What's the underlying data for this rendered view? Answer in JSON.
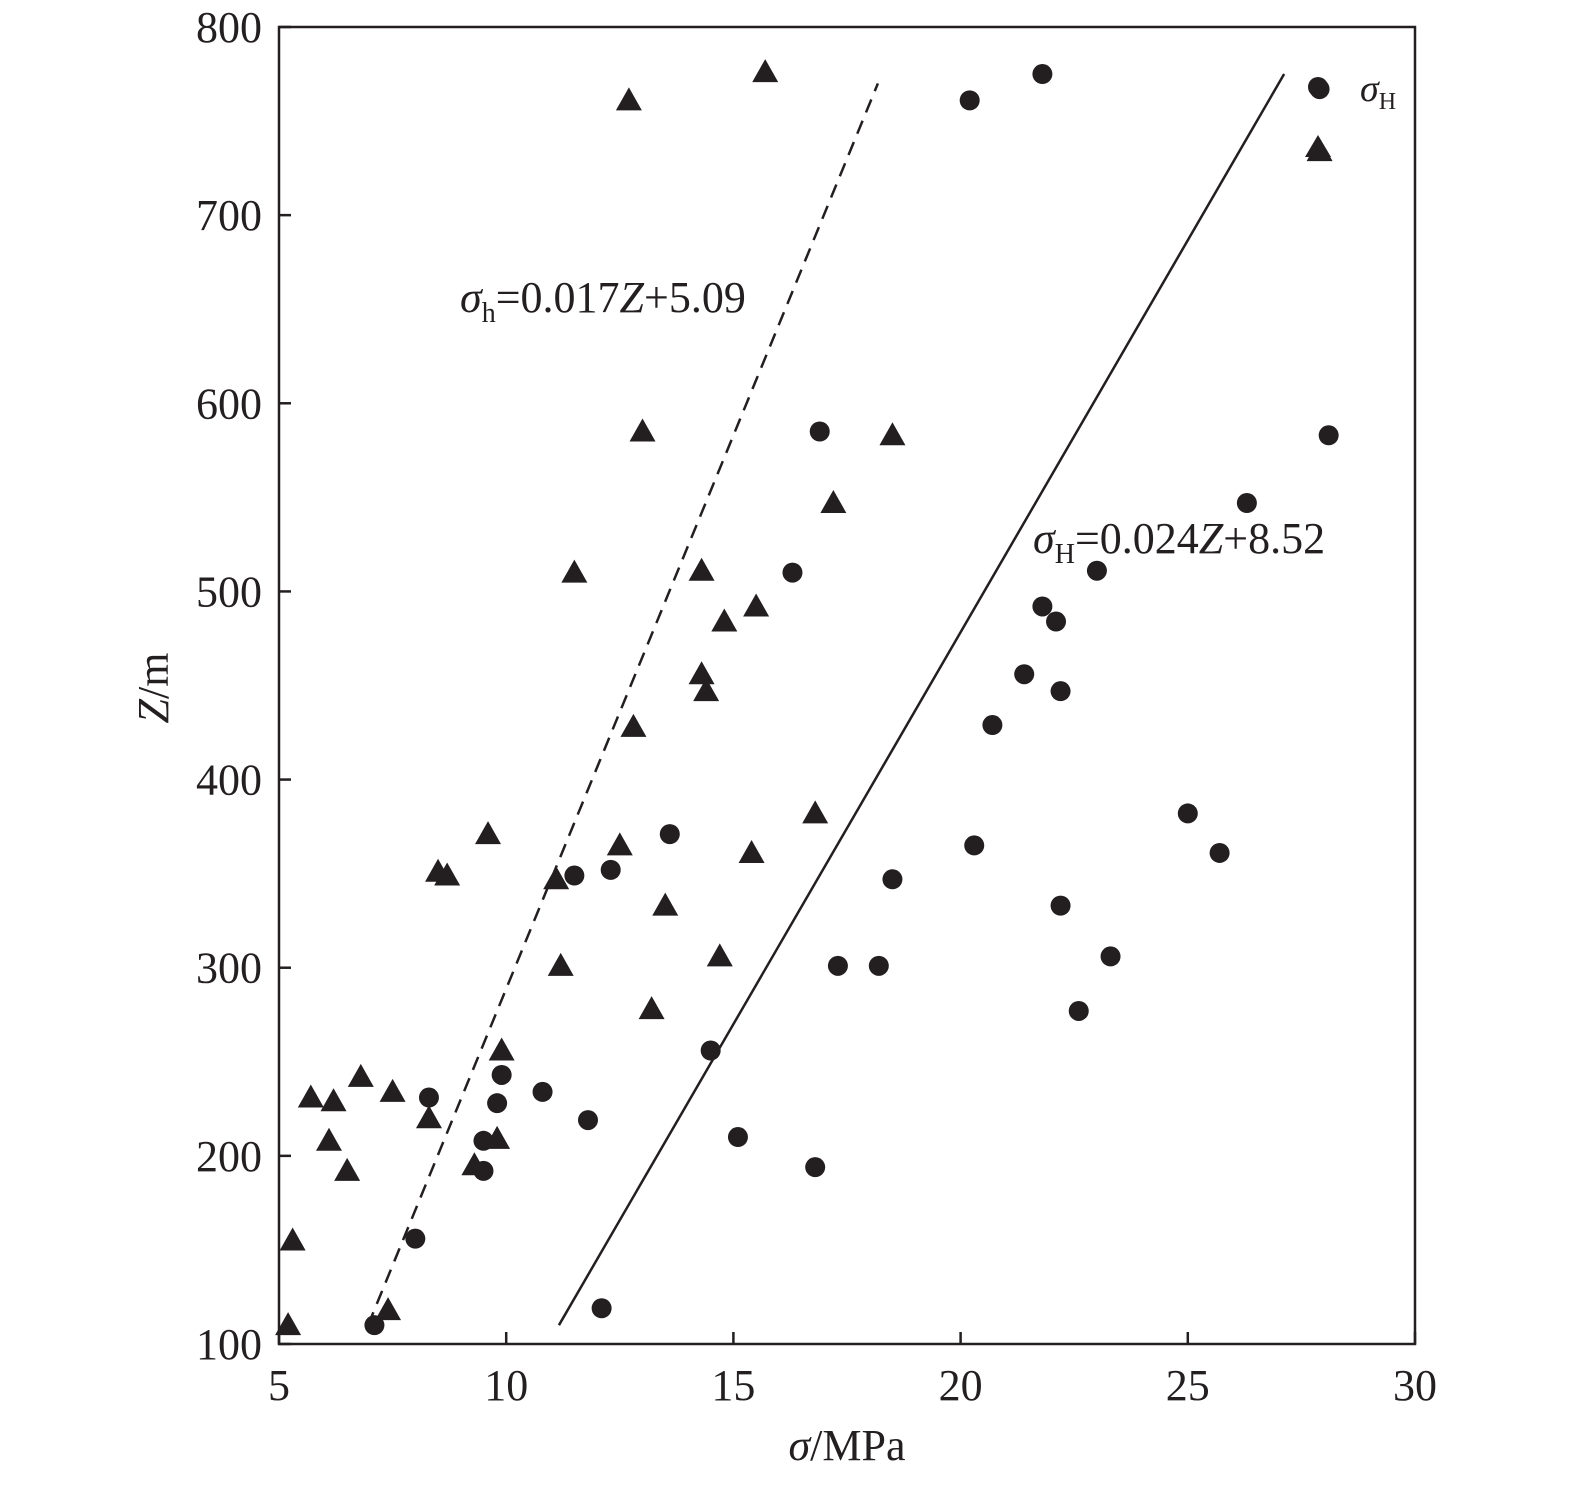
{
  "chart_data": {
    "type": "scatter",
    "xlabel": {
      "symbol": "σ",
      "unit": "/MPa"
    },
    "ylabel": {
      "symbol": "Z",
      "unit": "/m"
    },
    "xlim": [
      5,
      30
    ],
    "ylim": [
      100,
      800
    ],
    "xticks": [
      "5",
      "10",
      "15",
      "20",
      "25",
      "30"
    ],
    "yticks": [
      "100",
      "200",
      "300",
      "400",
      "500",
      "600",
      "700",
      "800"
    ],
    "grid": false,
    "legend": {
      "placement": "top-right",
      "entries": [
        {
          "symbol": "σ",
          "subscript": "H",
          "marker": "circle"
        },
        {
          "symbol": "",
          "subscript": "",
          "marker": "triangle"
        }
      ]
    },
    "colors": {
      "ink": "#231f20",
      "background": "#ffffff"
    },
    "series": [
      {
        "name": "σH",
        "marker": "circle",
        "points": [
          [
            7.1,
            110
          ],
          [
            8.0,
            156
          ],
          [
            8.3,
            231
          ],
          [
            9.5,
            192
          ],
          [
            9.5,
            208
          ],
          [
            9.8,
            228
          ],
          [
            9.9,
            243
          ],
          [
            10.8,
            234
          ],
          [
            11.5,
            349
          ],
          [
            11.8,
            219
          ],
          [
            12.1,
            119
          ],
          [
            12.3,
            352
          ],
          [
            13.6,
            371
          ],
          [
            14.5,
            256
          ],
          [
            15.1,
            210
          ],
          [
            16.3,
            510
          ],
          [
            16.8,
            194
          ],
          [
            16.9,
            585
          ],
          [
            17.3,
            301
          ],
          [
            18.2,
            301
          ],
          [
            18.5,
            347
          ],
          [
            20.2,
            761
          ],
          [
            20.3,
            365
          ],
          [
            20.7,
            429
          ],
          [
            21.4,
            456
          ],
          [
            21.8,
            492
          ],
          [
            21.8,
            775
          ],
          [
            22.1,
            484
          ],
          [
            22.2,
            447
          ],
          [
            22.2,
            333
          ],
          [
            22.6,
            277
          ],
          [
            23.0,
            511
          ],
          [
            23.3,
            306
          ],
          [
            25.0,
            382
          ],
          [
            25.7,
            361
          ],
          [
            26.3,
            547
          ],
          [
            27.9,
            767
          ],
          [
            28.1,
            583
          ]
        ]
      },
      {
        "name": "",
        "marker": "triangle",
        "points": [
          [
            5.2,
            110
          ],
          [
            5.3,
            155
          ],
          [
            5.7,
            231
          ],
          [
            6.1,
            208
          ],
          [
            6.2,
            229
          ],
          [
            6.5,
            192
          ],
          [
            6.8,
            242
          ],
          [
            7.4,
            118
          ],
          [
            7.5,
            234
          ],
          [
            8.3,
            220
          ],
          [
            8.5,
            351
          ],
          [
            8.7,
            349
          ],
          [
            9.3,
            195
          ],
          [
            9.6,
            371
          ],
          [
            9.8,
            209
          ],
          [
            9.9,
            256
          ],
          [
            11.1,
            347
          ],
          [
            11.2,
            301
          ],
          [
            11.5,
            510
          ],
          [
            12.5,
            365
          ],
          [
            12.7,
            761
          ],
          [
            12.8,
            428
          ],
          [
            13.0,
            585
          ],
          [
            13.2,
            278
          ],
          [
            13.5,
            333
          ],
          [
            14.3,
            456
          ],
          [
            14.3,
            511
          ],
          [
            14.4,
            447
          ],
          [
            14.7,
            306
          ],
          [
            14.8,
            484
          ],
          [
            15.4,
            361
          ],
          [
            15.5,
            492
          ],
          [
            15.7,
            776
          ],
          [
            16.8,
            382
          ],
          [
            17.2,
            547
          ],
          [
            18.5,
            583
          ],
          [
            27.9,
            734
          ]
        ]
      }
    ],
    "fit_lines": [
      {
        "style": "dashed",
        "label": {
          "symbol": "σ",
          "subscript": "h",
          "eq_prefix": "=0.017",
          "eq_var": "Z",
          "eq_suffix": "+5.09"
        },
        "slope": 0.017,
        "intercept": 5.09,
        "z_range": [
          110,
          770
        ]
      },
      {
        "style": "solid",
        "label": {
          "symbol": "σ",
          "subscript": "H",
          "eq_prefix": "=0.024",
          "eq_var": "Z",
          "eq_suffix": "+8.52"
        },
        "slope": 0.024,
        "intercept": 8.52,
        "z_range": [
          110,
          775
        ]
      }
    ]
  }
}
